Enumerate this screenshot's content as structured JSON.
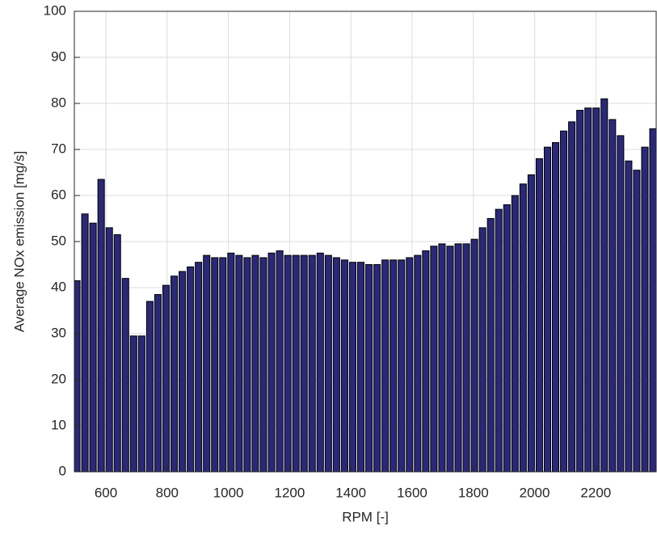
{
  "chart_data": {
    "type": "bar",
    "xlabel": "RPM [-]",
    "ylabel": "Average NOx emission [mg/s]",
    "color": "#2a2878",
    "edgecolor": "#000000",
    "grid": true,
    "xlim": [
      497,
      2397
    ],
    "ylim": [
      0,
      100
    ],
    "xticks": [
      600,
      800,
      1000,
      1200,
      1400,
      1600,
      1800,
      2000,
      2200
    ],
    "yticks": [
      0,
      10,
      20,
      30,
      40,
      50,
      60,
      70,
      80,
      90,
      100
    ],
    "x": [
      505,
      531.5,
      558,
      584.5,
      611,
      637.5,
      664,
      690.5,
      717,
      743.5,
      770,
      796.5,
      823,
      849.5,
      876,
      902.5,
      929,
      955.5,
      982,
      1008.5,
      1035,
      1061.5,
      1088,
      1114.5,
      1141,
      1167.5,
      1194,
      1220.5,
      1247,
      1273.5,
      1300,
      1326.5,
      1353,
      1379.5,
      1406,
      1432.5,
      1459,
      1485.5,
      1512,
      1538.5,
      1565,
      1591.5,
      1618,
      1644.5,
      1671,
      1697.5,
      1724,
      1750.5,
      1777,
      1803.5,
      1830,
      1856.5,
      1883,
      1909.5,
      1936,
      1962.5,
      1989,
      2015.5,
      2042,
      2068.5,
      2095,
      2121.5,
      2148,
      2174.5,
      2201,
      2227.5,
      2254,
      2280.5,
      2307,
      2333.5,
      2360,
      2386.5
    ],
    "values": [
      41.5,
      56,
      54,
      63.5,
      53,
      51.5,
      42,
      29.5,
      29.5,
      37,
      38.5,
      40.5,
      42.5,
      43.5,
      44.5,
      45.5,
      47,
      46.5,
      46.5,
      47.5,
      47,
      46.5,
      47,
      46.5,
      47.5,
      48,
      47,
      47,
      47,
      47,
      47.5,
      47,
      46.5,
      46,
      45.5,
      45.5,
      45,
      45,
      46,
      46,
      46,
      46.5,
      47,
      48,
      49,
      49.5,
      49,
      49.5,
      49.5,
      50.5,
      53,
      55,
      57,
      58,
      60,
      62.5,
      64.5,
      68,
      70.5,
      71.5,
      74,
      76,
      78.5,
      79,
      79,
      81,
      76.5,
      73,
      67.5,
      65.5,
      70.5,
      74.5
    ]
  }
}
